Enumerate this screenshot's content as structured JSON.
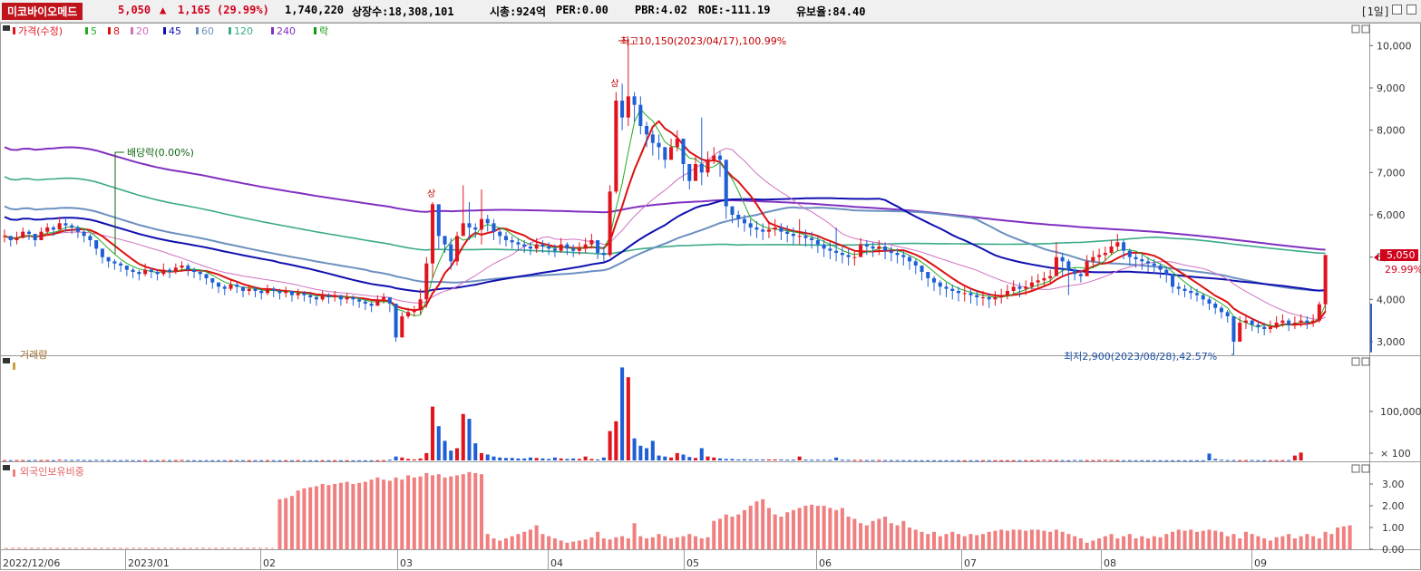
{
  "header": {
    "name": "미코바이오메드",
    "price": "5,050",
    "arrow": "▲",
    "change": "1,165",
    "change_pct": "(29.99%)",
    "volume": "1,740,220",
    "shares": "상장수:18,308,101",
    "mcap": "시총:924억",
    "per": "PER:0.00",
    "pbr": "PBR:4.02",
    "roe": "ROE:-111.19",
    "float": "유보율:84.40",
    "period": "[1일]"
  },
  "colors": {
    "up": "#e0141e",
    "down": "#1f5fd6",
    "ma5": "#22aa22",
    "ma8": "#dd1111",
    "ma20": "#d070c0",
    "ma45": "#1010b0",
    "ma60": "#6c90c0",
    "ma120": "#3aaa8a",
    "ma240": "#8030c0",
    "foreign": "#f08080"
  },
  "price_legend": [
    {
      "label": "가격(수정)",
      "color": "#e0141e"
    },
    {
      "label": "5",
      "color": "#22aa22"
    },
    {
      "label": "8",
      "color": "#dd1111"
    },
    {
      "label": "20",
      "color": "#d070c0"
    },
    {
      "label": "45",
      "color": "#1010b0"
    },
    {
      "label": "60",
      "color": "#6c90c0"
    },
    {
      "label": "120",
      "color": "#3aaa8a"
    },
    {
      "label": "240",
      "color": "#8030c0"
    },
    {
      "label": "락",
      "color": "#119911"
    }
  ],
  "volume_legend": "거래량",
  "foreign_legend": "외국인보유비중",
  "annotations": {
    "high": "최고10,150(2023/04/17),100.99%",
    "low": "최저2,900(2023/08/28),42.57%",
    "dividend": "배당락(0.00%)",
    "upper_limit": "상"
  },
  "last_price_label": "5,050",
  "last_pct_label": "29.99%",
  "chart_data": {
    "type": "candlestick",
    "x_labels": [
      "2022/12/06",
      "2023/01",
      "02",
      "03",
      "04",
      "05",
      "06",
      "07",
      "08",
      "09"
    ],
    "price_axis": {
      "min": 2700,
      "max": 10500,
      "ticks": [
        3000,
        4000,
        5000,
        6000,
        7000,
        8000,
        9000,
        10000
      ],
      "tick_labels": [
        "3,000",
        "4,000",
        "5,000",
        "6,000",
        "7,000",
        "8,000",
        "9,000",
        "10,000"
      ]
    },
    "volume_axis": {
      "tick_labels": [
        "100,000",
        "× 100"
      ],
      "max": 200000
    },
    "foreign_axis": {
      "min": 0,
      "max": 4,
      "ticks": [
        0,
        1,
        2,
        3
      ],
      "tick_labels": [
        "0.00",
        "1.00",
        "2.00",
        "3.00"
      ]
    },
    "closes": [
      5500,
      5400,
      5450,
      5600,
      5550,
      5400,
      5600,
      5700,
      5650,
      5800,
      5750,
      5700,
      5600,
      5500,
      5400,
      5200,
      5000,
      4900,
      4850,
      4800,
      4700,
      4650,
      4600,
      4700,
      4650,
      4600,
      4700,
      4650,
      4750,
      4800,
      4700,
      4650,
      4600,
      4500,
      4400,
      4300,
      4250,
      4350,
      4300,
      4200,
      4250,
      4200,
      4150,
      4250,
      4200,
      4150,
      4200,
      4100,
      4150,
      4100,
      4050,
      4000,
      4100,
      4050,
      4100,
      4000,
      4050,
      4000,
      3950,
      3900,
      3850,
      4000,
      4050,
      3900,
      3100,
      3600,
      3700,
      3750,
      4000,
      4850,
      6250,
      5500,
      5300,
      4900,
      5500,
      5800,
      5700,
      5650,
      5900,
      5800,
      5600,
      5500,
      5400,
      5350,
      5300,
      5250,
      5200,
      5300,
      5250,
      5200,
      5150,
      5300,
      5200,
      5150,
      5200,
      5300,
      5400,
      5100,
      5050,
      6550,
      8700,
      8300,
      8800,
      8600,
      8100,
      7900,
      7700,
      7600,
      7300,
      7600,
      7800,
      7200,
      6800,
      7200,
      7000,
      7300,
      7400,
      7300,
      6200,
      6000,
      5900,
      5800,
      5700,
      5650,
      5600,
      5650,
      5700,
      5600,
      5550,
      5500,
      5500,
      5450,
      5400,
      5300,
      5200,
      5150,
      5100,
      5050,
      5000,
      5000,
      5300,
      5250,
      5200,
      5250,
      5150,
      5100,
      5050,
      5000,
      4900,
      4800,
      4650,
      4500,
      4400,
      4300,
      4250,
      4200,
      4150,
      4150,
      4100,
      4050,
      4050,
      4000,
      4050,
      4100,
      4200,
      4300,
      4250,
      4300,
      4400,
      4450,
      4500,
      4550,
      5000,
      4900,
      4700,
      4600,
      4550,
      4900,
      5000,
      5050,
      5100,
      5250,
      5350,
      5150,
      5000,
      4950,
      4900,
      4850,
      4800,
      4700,
      4600,
      4300,
      4250,
      4200,
      4150,
      4100,
      4000,
      3900,
      3800,
      3700,
      3600,
      3000,
      3450,
      3500,
      3400,
      3350,
      3300,
      3350,
      3450,
      3500,
      3400,
      3450,
      3500,
      3450,
      3500,
      3885,
      5050
    ],
    "highs": [
      5650,
      5500,
      5600,
      5700,
      5650,
      5550,
      5700,
      5800,
      5750,
      5950,
      5900,
      5800,
      5750,
      5650,
      5550,
      5350,
      5150,
      5000,
      4950,
      4900,
      4800,
      4750,
      4700,
      4850,
      4750,
      4700,
      4850,
      4750,
      4850,
      4900,
      4850,
      4750,
      4700,
      4600,
      4500,
      4400,
      4350,
      4450,
      4400,
      4300,
      4350,
      4300,
      4250,
      4350,
      4300,
      4250,
      4300,
      4200,
      4250,
      4200,
      4150,
      4100,
      4200,
      4150,
      4200,
      4100,
      4150,
      4100,
      4050,
      4000,
      3950,
      4100,
      4150,
      4050,
      3500,
      3700,
      3800,
      3850,
      4250,
      5000,
      6300,
      6200,
      5500,
      5450,
      5600,
      6700,
      6300,
      5800,
      6600,
      6000,
      5900,
      5700,
      5600,
      5500,
      5450,
      5400,
      5350,
      5450,
      5400,
      5350,
      5300,
      5450,
      5350,
      5300,
      5350,
      5450,
      5550,
      5350,
      5250,
      6700,
      8900,
      9100,
      10150,
      8900,
      8800,
      8200,
      8000,
      7900,
      7600,
      7800,
      8000,
      7800,
      7100,
      7400,
      8300,
      7500,
      7600,
      7500,
      7300,
      6200,
      6100,
      6000,
      5900,
      5850,
      5800,
      5850,
      5900,
      5800,
      5750,
      5700,
      5900,
      5650,
      5600,
      5500,
      5400,
      5350,
      5700,
      5250,
      5200,
      5150,
      5450,
      5400,
      5350,
      5400,
      5350,
      5250,
      5200,
      5150,
      5050,
      4950,
      4800,
      4650,
      4550,
      4450,
      4400,
      4350,
      4300,
      4300,
      4250,
      4200,
      4200,
      4150,
      4200,
      4250,
      4350,
      4450,
      4400,
      4450,
      4550,
      4600,
      4650,
      4700,
      5350,
      5100,
      4950,
      4750,
      4700,
      5050,
      5150,
      5200,
      5250,
      5400,
      5550,
      5400,
      5200,
      5100,
      5050,
      5000,
      4950,
      4850,
      4750,
      4450,
      4400,
      4350,
      4300,
      4250,
      4150,
      4050,
      3950,
      3850,
      3750,
      3600,
      3600,
      3650,
      3550,
      3500,
      3450,
      3500,
      3600,
      3650,
      3550,
      3600,
      3650,
      3600,
      3650,
      3950,
      5050
    ],
    "lows": [
      5350,
      5250,
      5300,
      5450,
      5400,
      5250,
      5450,
      5550,
      5500,
      5650,
      5600,
      5550,
      5450,
      5350,
      5250,
      5050,
      4850,
      4750,
      4700,
      4650,
      4550,
      4500,
      4450,
      4550,
      4500,
      4450,
      4550,
      4500,
      4600,
      4650,
      4550,
      4500,
      4450,
      4350,
      4250,
      4150,
      4100,
      4200,
      4150,
      4050,
      4100,
      4050,
      4000,
      4100,
      4050,
      4000,
      4050,
      3950,
      4000,
      3950,
      3900,
      3850,
      3950,
      3900,
      3950,
      3850,
      3900,
      3850,
      3800,
      3750,
      3700,
      3850,
      3900,
      3700,
      3000,
      3100,
      3550,
      3600,
      3650,
      3800,
      4500,
      5200,
      5100,
      4700,
      4800,
      5500,
      5400,
      5450,
      5300,
      5600,
      5400,
      5300,
      5250,
      5200,
      5150,
      5100,
      5050,
      5100,
      5100,
      5050,
      5000,
      5100,
      5050,
      5000,
      5050,
      5100,
      5200,
      4950,
      4900,
      5000,
      6500,
      8000,
      8100,
      8200,
      7900,
      7600,
      7400,
      7300,
      7100,
      7300,
      7500,
      6800,
      6600,
      6900,
      6700,
      6900,
      7200,
      6900,
      5900,
      5800,
      5700,
      5600,
      5500,
      5450,
      5400,
      5450,
      5500,
      5400,
      5350,
      5300,
      5300,
      5250,
      5200,
      5100,
      5000,
      4950,
      4900,
      4850,
      4800,
      4800,
      5100,
      5050,
      5000,
      5050,
      4950,
      4900,
      4850,
      4800,
      4700,
      4600,
      4450,
      4300,
      4200,
      4100,
      4050,
      4000,
      3950,
      3950,
      3900,
      3850,
      3850,
      3800,
      3850,
      3900,
      4000,
      4100,
      4050,
      4100,
      4200,
      4250,
      4300,
      4350,
      4550,
      4550,
      4100,
      4450,
      4400,
      4550,
      4800,
      4850,
      4900,
      5050,
      5150,
      4950,
      4800,
      4750,
      4700,
      4650,
      4600,
      4500,
      4400,
      4150,
      4100,
      4050,
      4000,
      3950,
      3850,
      3750,
      3650,
      3550,
      3450,
      2900,
      3100,
      3300,
      3250,
      3200,
      3150,
      3200,
      3300,
      3350,
      3250,
      3300,
      3350,
      3300,
      3350,
      3450,
      3700
    ],
    "volumes": [
      500,
      600,
      800,
      700,
      500,
      900,
      700,
      800,
      600,
      1500,
      1200,
      900,
      1400,
      800,
      600,
      1100,
      900,
      700,
      500,
      600,
      800,
      500,
      400,
      600,
      500,
      400,
      700,
      500,
      600,
      900,
      500,
      400,
      300,
      500,
      400,
      300,
      400,
      300,
      500,
      400,
      300,
      400,
      300,
      500,
      400,
      300,
      400,
      300,
      400,
      300,
      300,
      200,
      400,
      300,
      400,
      300,
      300,
      200,
      300,
      200,
      300,
      400,
      500,
      1500,
      8000,
      6000,
      3000,
      2000,
      4000,
      15000,
      110000,
      70000,
      40000,
      20000,
      25000,
      95000,
      85000,
      35000,
      15000,
      12000,
      8000,
      6000,
      5000,
      5000,
      4000,
      4000,
      6000,
      5000,
      4000,
      3000,
      6000,
      4000,
      3000,
      4000,
      3000,
      8000,
      3000,
      2000,
      6000,
      60000,
      80000,
      190000,
      170000,
      45000,
      30000,
      25000,
      40000,
      10000,
      8000,
      6000,
      15000,
      12000,
      7000,
      5000,
      25000,
      8000,
      6000,
      4000,
      3000,
      3000,
      2000,
      2500,
      2000,
      2000,
      2000,
      2000,
      2000,
      2000,
      1500,
      1500,
      8000,
      1500,
      1500,
      1500,
      1500,
      1200,
      6000,
      1500,
      1200,
      1000,
      1000,
      800,
      800,
      900,
      700,
      600,
      600,
      500,
      500,
      400,
      400,
      400,
      300,
      300,
      300,
      300,
      300,
      300,
      300,
      300,
      400,
      400,
      400,
      400,
      400,
      400,
      500,
      500,
      400,
      600,
      1200,
      800,
      600,
      500,
      400,
      900,
      700,
      600,
      500,
      800,
      1000,
      700,
      500,
      400,
      500,
      400,
      400,
      300,
      300,
      300,
      300,
      300,
      300,
      300,
      300,
      300,
      300,
      14000,
      3000,
      1500,
      800,
      600,
      500,
      700,
      800,
      500,
      400,
      500,
      600,
      500,
      700,
      10000,
      16000
    ],
    "foreign_pct": [
      0,
      0,
      0,
      0,
      0,
      0,
      0,
      0,
      0,
      0,
      0,
      0,
      0,
      0,
      0,
      0,
      0,
      0,
      0,
      0,
      0,
      0,
      0,
      0,
      0,
      0,
      0,
      0,
      0,
      0,
      0,
      0,
      0,
      0,
      0,
      0,
      0,
      0,
      0,
      0,
      0,
      0,
      0,
      0,
      0,
      2.3,
      2.35,
      2.45,
      2.7,
      2.8,
      2.85,
      2.9,
      3.0,
      2.95,
      3.0,
      3.05,
      3.1,
      3.0,
      3.05,
      3.1,
      3.2,
      3.3,
      3.2,
      3.15,
      3.3,
      3.2,
      3.4,
      3.3,
      3.35,
      3.5,
      3.4,
      3.45,
      3.3,
      3.35,
      3.4,
      3.45,
      3.55,
      3.5,
      3.45,
      0.7,
      0.5,
      0.4,
      0.5,
      0.6,
      0.7,
      0.8,
      0.9,
      1.1,
      0.7,
      0.6,
      0.5,
      0.4,
      0.3,
      0.35,
      0.4,
      0.45,
      0.55,
      0.8,
      0.5,
      0.45,
      0.55,
      0.6,
      0.5,
      1.2,
      0.6,
      0.5,
      0.55,
      0.7,
      0.6,
      0.5,
      0.55,
      0.6,
      0.7,
      0.6,
      0.5,
      0.55,
      1.3,
      1.4,
      1.6,
      1.5,
      1.6,
      1.8,
      2.0,
      2.2,
      2.3,
      1.9,
      1.6,
      1.5,
      1.7,
      1.8,
      1.9,
      2.0,
      2.05,
      2.0,
      2.0,
      1.9,
      1.8,
      1.9,
      1.5,
      1.4,
      1.2,
      1.1,
      1.3,
      1.4,
      1.5,
      1.2,
      1.1,
      1.3,
      1.0,
      0.9,
      0.8,
      0.7,
      0.8,
      0.6,
      0.7,
      0.8,
      0.7,
      0.6,
      0.7,
      0.65,
      0.7,
      0.8,
      0.85,
      0.9,
      0.85,
      0.9,
      0.9,
      0.85,
      0.9,
      0.9,
      0.85,
      0.8,
      0.9,
      0.8,
      0.7,
      0.6,
      0.5,
      0.3,
      0.4,
      0.5,
      0.6,
      0.7,
      0.5,
      0.6,
      0.7,
      0.5,
      0.6,
      0.5,
      0.6,
      0.55,
      0.7,
      0.8,
      0.9,
      0.85,
      0.9,
      0.8,
      0.85,
      0.9,
      0.85,
      0.8,
      0.6,
      0.7,
      0.5,
      0.8,
      0.7,
      0.6,
      0.5,
      0.4,
      0.55,
      0.6,
      0.7,
      0.5,
      0.6,
      0.7,
      0.6,
      0.5,
      0.8,
      0.7,
      1.0,
      1.05,
      1.1
    ]
  }
}
